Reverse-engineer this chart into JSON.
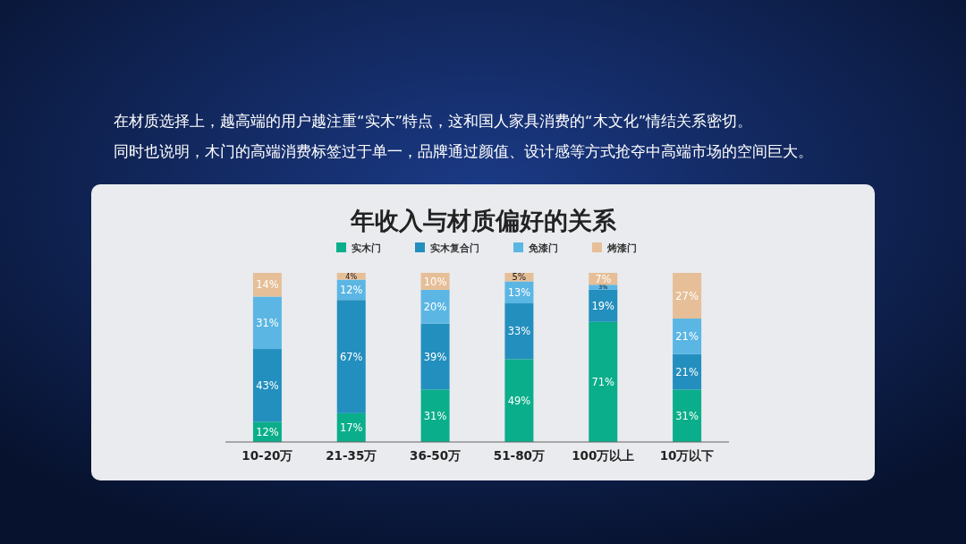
{
  "chart_data": {
    "type": "bar",
    "stacked": true,
    "title": "年收入与材质偏好的关系",
    "annotations": [
      "在材质选择上，越高端的用户越注重“实木”特点，这和国人家具消费的“木文化”情结关系密切。",
      "同时也说明，木门的高端消费标签过于单一，品牌通过颜值、设计感等方式抢夺中高端市场的空间巨大。"
    ],
    "categories": [
      "10-20万",
      "21-35万",
      "36-50万",
      "51-80万",
      "100万以上",
      "10万以下"
    ],
    "legend": "top",
    "series": [
      {
        "name": "实木门",
        "color": "#0aae8a",
        "values": [
          12,
          17,
          31,
          49,
          71,
          31
        ],
        "value_labels": [
          "12%",
          "17%",
          "31%",
          "49%",
          "71%",
          "31%"
        ]
      },
      {
        "name": "实木复合门",
        "color": "#238fbe",
        "values": [
          43,
          67,
          39,
          33,
          19,
          21
        ],
        "value_labels": [
          "43%",
          "67%",
          "39%",
          "33%",
          "19%",
          "21%"
        ]
      },
      {
        "name": "免漆门",
        "color": "#5bb6e4",
        "values": [
          31,
          12,
          20,
          13,
          3,
          21
        ],
        "value_labels": [
          "31%",
          "12%",
          "20%",
          "13%",
          "3%",
          "21%"
        ]
      },
      {
        "name": "烤漆门",
        "color": "#e6bf98",
        "values": [
          14,
          4,
          10,
          5,
          7,
          27
        ],
        "value_labels": [
          "14%",
          "4%",
          "10%",
          "5%",
          "7%",
          "27%"
        ]
      }
    ]
  }
}
